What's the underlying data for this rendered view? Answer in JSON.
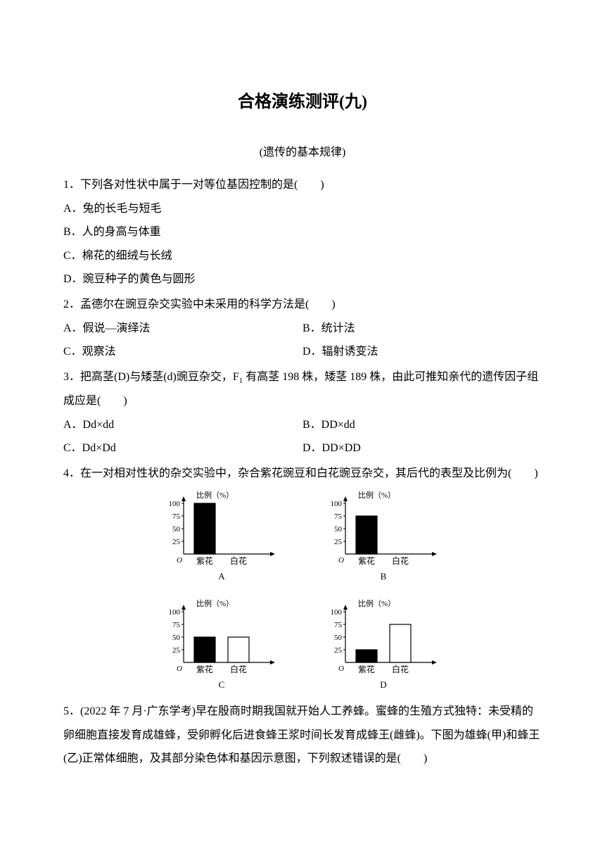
{
  "title": "合格演练测评(九)",
  "subtitle": "(遗传的基本规律)",
  "q1": {
    "stem": "1．下列各对性状中属于一对等位基因控制的是(　　)",
    "A": "A．兔的长毛与短毛",
    "B": "B．人的身高与体重",
    "C": "C．棉花的细绒与长绒",
    "D": "D．豌豆种子的黄色与圆形"
  },
  "q2": {
    "stem": "2．孟德尔在豌豆杂交实验中未采用的科学方法是(　　)",
    "A": "A．假说—演绎法",
    "B": "B．统计法",
    "C": "C．观察法",
    "D": "D．辐射诱变法"
  },
  "q3": {
    "stem_pre": "3．把高茎(D)与矮茎(d)豌豆杂交，F",
    "stem_sub": "1",
    "stem_post": " 有高茎 198 株，矮茎 189 株，由此可推知亲代的遗传因子组成应是(　　)",
    "A": "A．Dd×dd",
    "B": "B．DD×dd",
    "C": "C．Dd×Dd",
    "D": "D．DD×DD"
  },
  "q4": {
    "stem": "4．在一对相对性状的杂交实验中，杂合紫花豌豆和白花豌豆杂交，其后代的表型及比例为(　　)"
  },
  "q5": {
    "stem": "5．(2022 年 7 月·广东学考)早在殷商时期我国就开始人工养蜂。蜜蜂的生殖方式独特：未受精的卵细胞直接发育成雄蜂，受卵孵化后进食蜂王浆时间长发育成蜂王(雌蜂)。下图为雄蜂(甲)和蜂王(乙)正常体细胞，及其部分染色体和基因示意图，下列叙述错误的是(　　)"
  },
  "charts": {
    "axis_label": "比例（%）",
    "ylim": [
      0,
      100
    ],
    "yticks": [
      25,
      50,
      75,
      100
    ],
    "ytick_labels": [
      "25",
      "50",
      "75",
      "100"
    ],
    "origin_label": "O",
    "x_categories": [
      "紫花",
      "白花"
    ],
    "tick_fontsize": 11,
    "axis_color": "#000000",
    "bar_fill_dark": "#000000",
    "bar_fill_light": "#ffffff",
    "bar_border": "#000000",
    "background": "#ffffff",
    "panels": [
      {
        "letter": "A",
        "values": [
          100,
          0
        ],
        "fills": [
          "dark",
          "light"
        ]
      },
      {
        "letter": "B",
        "values": [
          75,
          0
        ],
        "fills": [
          "dark",
          "light"
        ]
      },
      {
        "letter": "C",
        "values": [
          50,
          50
        ],
        "fills": [
          "dark",
          "light"
        ]
      },
      {
        "letter": "D",
        "values": [
          25,
          75
        ],
        "fills": [
          "dark",
          "light"
        ]
      }
    ]
  }
}
